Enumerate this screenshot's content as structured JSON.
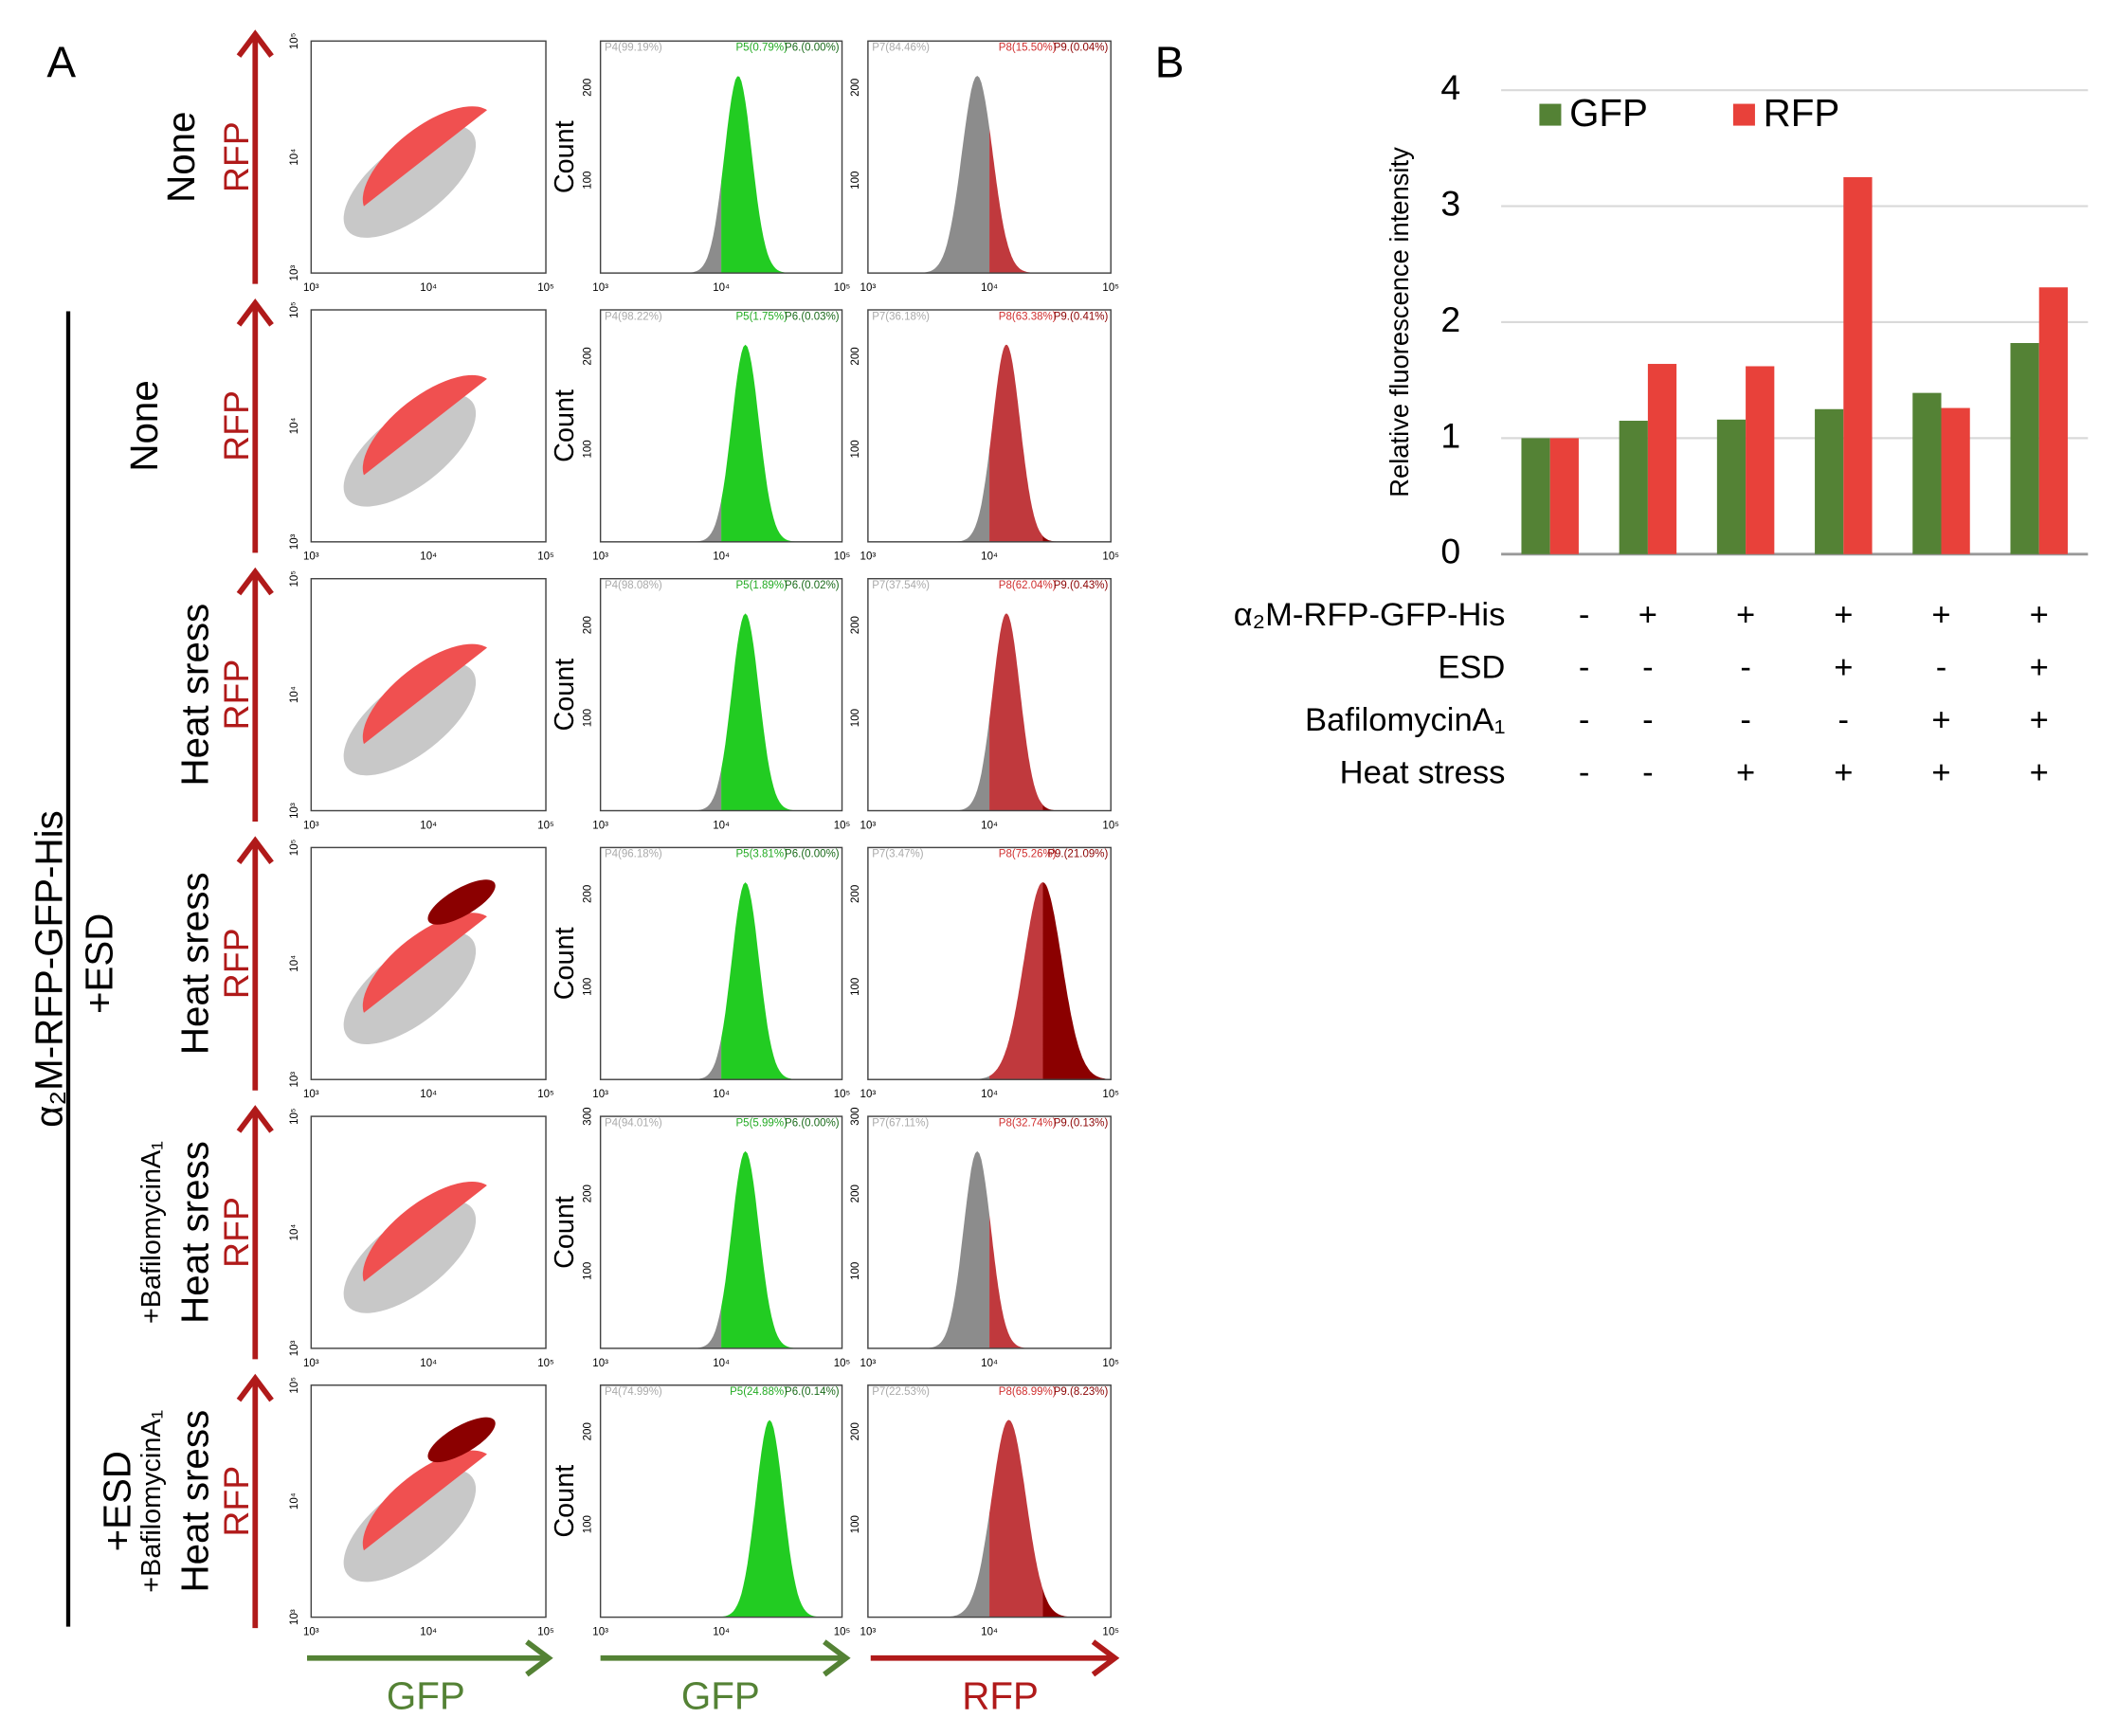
{
  "panel_a": {
    "label": "A",
    "group_label": "α₂M-RFP-GFP-His",
    "axis_ticks": [
      "10³",
      "10⁴",
      "10⁵"
    ],
    "y_axis_label": "RFP",
    "count_label": "Count",
    "x_axis_labels": [
      "GFP",
      "GFP",
      "RFP"
    ],
    "rows": [
      {
        "treatment": [],
        "condition": "None",
        "count_ticks": [
          "100",
          "200"
        ],
        "gfp_gates": [
          "P4(99.19%)",
          "P5(0.79%)",
          "P6.(0.00%)"
        ],
        "rfp_gates": [
          "P7(84.46%)",
          "P8(15.50%)",
          "P9.(0.04%)"
        ]
      },
      {
        "treatment": [],
        "condition": "None",
        "count_ticks": [
          "100",
          "200"
        ],
        "gfp_gates": [
          "P4(98.22%)",
          "P5(1.75%)",
          "P6.(0.03%)"
        ],
        "rfp_gates": [
          "P7(36.18%)",
          "P8(63.38%)",
          "P9.(0.41%)"
        ]
      },
      {
        "treatment": [],
        "condition": "Heat sress",
        "count_ticks": [
          "100",
          "200"
        ],
        "gfp_gates": [
          "P4(98.08%)",
          "P5(1.89%)",
          "P6.(0.02%)"
        ],
        "rfp_gates": [
          "P7(37.54%)",
          "P8(62.04%)",
          "P9.(0.43%)"
        ]
      },
      {
        "treatment": [
          "+ESD"
        ],
        "condition": "Heat sress",
        "count_ticks": [
          "100",
          "200"
        ],
        "gfp_gates": [
          "P4(96.18%)",
          "P5(3.81%)",
          "P6.(0.00%)"
        ],
        "rfp_gates": [
          "P7(3.47%)",
          "P8(75.26%)",
          "P9.(21.09%)"
        ]
      },
      {
        "treatment": [
          "+BafilomycinA₁"
        ],
        "condition": "Heat sress",
        "count_ticks": [
          "100",
          "200",
          "300"
        ],
        "gfp_gates": [
          "P4(94.01%)",
          "P5(5.99%)",
          "P6.(0.00%)"
        ],
        "rfp_gates": [
          "P7(67.11%)",
          "P8(32.74%)",
          "P9.(0.13%)"
        ]
      },
      {
        "treatment": [
          "+ESD",
          "+BafilomycinA₁"
        ],
        "condition": "Heat sress",
        "count_ticks": [
          "100",
          "200"
        ],
        "gfp_gates": [
          "P4(74.99%)",
          "P5(24.88%)",
          "P6.(0.14%)"
        ],
        "rfp_gates": [
          "P7(22.53%)",
          "P8(68.99%)",
          "P9.(8.23%)"
        ]
      }
    ]
  },
  "chart_data": {
    "type": "bar",
    "panel_label": "B",
    "ylabel": "Relative fluorescence intensity",
    "categories": [
      null,
      null,
      null,
      null,
      null,
      null
    ],
    "series": [
      {
        "name": "GFP",
        "color": "#548235",
        "values": [
          1,
          1.15,
          1.16,
          1.25,
          1.39,
          1.82
        ]
      },
      {
        "name": "RFP",
        "color": "#e8413a",
        "values": [
          1,
          1.64,
          1.62,
          3.25,
          1.26,
          2.3
        ]
      }
    ],
    "ylim": [
      0,
      4
    ],
    "yticks": [
      0,
      1,
      2,
      3,
      4
    ],
    "grid": true,
    "legend": "top-left",
    "conditions": [
      {
        "label": "α₂M-RFP-GFP-His",
        "signs": [
          "-",
          "+",
          "+",
          "+",
          "+",
          "+"
        ]
      },
      {
        "label": "ESD",
        "signs": [
          "-",
          "-",
          "-",
          "+",
          "-",
          "+"
        ]
      },
      {
        "label": "BafilomycinA₁",
        "signs": [
          "-",
          "-",
          "-",
          "-",
          "+",
          "+"
        ]
      },
      {
        "label": "Heat stress",
        "signs": [
          "-",
          "-",
          "+",
          "+",
          "+",
          "+"
        ]
      }
    ]
  }
}
